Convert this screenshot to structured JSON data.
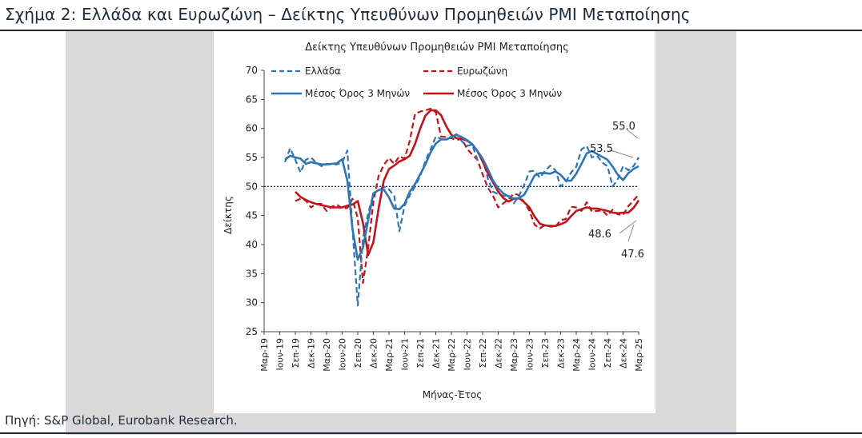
{
  "figure": {
    "caption": "Σχήμα 2: Ελλάδα και Ευρωζώνη – Δείκτης Υπευθύνων Προμηθειών PMI Μεταποίησης",
    "source": "Πηγή: S&P Global, Eurobank Research."
  },
  "colors": {
    "greece": "#2e75b6",
    "eurozone": "#c0141b",
    "reference": "#1f3a93",
    "frame": "#1d2b3a",
    "band": "#d9d9d9"
  },
  "chart_data": {
    "type": "line",
    "title": "Δείκτης Υπευθύνων Προμηθειών PMI Μεταποίησης",
    "xlabel": "Μήνας-Έτος",
    "ylabel": "Δείκτης",
    "ylim": [
      25,
      70
    ],
    "yticks": [
      25,
      30,
      35,
      40,
      45,
      50,
      55,
      60,
      65,
      70
    ],
    "reference_line": 50,
    "grid": false,
    "legend_position": "top-left",
    "x_ticklabels": [
      "Μαρ-19",
      "Ιουν-19",
      "Σεπ-19",
      "Δεκ-19",
      "Μαρ-20",
      "Ιουν-20",
      "Σεπ-20",
      "Δεκ-20",
      "Μαρ-21",
      "Ιουν-21",
      "Σεπ-21",
      "Δεκ-21",
      "Μαρ-22",
      "Ιουν-22",
      "Σεπ-22",
      "Δεκ-22",
      "Μαρ-23",
      "Ιουν-23",
      "Σεπ-23",
      "Δεκ-23",
      "Μαρ-24",
      "Ιουν-24",
      "Σεπ-24",
      "Δεκ-24",
      "Μαρ-25"
    ],
    "series": [
      {
        "name": "Ελλάδα",
        "style": "dashed",
        "color": "#2e75b6",
        "values": [
          54.2,
          56.6,
          54.6,
          52.4,
          54.6,
          55.0,
          54.1,
          53.5,
          53.9,
          53.8,
          53.8,
          54.1,
          56.2,
          42.5,
          29.5,
          41.1,
          45.4,
          48.7,
          49.4,
          50.0,
          49.5,
          48.4,
          42.3,
          46.7,
          48.5,
          50.0,
          51.8,
          54.4,
          56.4,
          58.6,
          58.2,
          58.0,
          58.6,
          59.0,
          57.8,
          57.0,
          57.2,
          54.6,
          54.8,
          51.4,
          49.1,
          48.7,
          48.4,
          48.5,
          47.1,
          48.4,
          50.3,
          52.6,
          52.7,
          51.5,
          52.7,
          53.6,
          52.8,
          50.0,
          50.8,
          52.4,
          53.4,
          56.4,
          57.0,
          55.0,
          55.3,
          54.1,
          53.5,
          50.0,
          51.3,
          53.5,
          52.8,
          53.5,
          55.0
        ]
      },
      {
        "name": "Ευρωζώνη",
        "style": "dashed",
        "color": "#c0141b",
        "values": [
          47.5,
          47.9,
          47.6,
          46.4,
          47.0,
          47.0,
          45.8,
          46.5,
          46.9,
          46.2,
          46.3,
          47.9,
          44.5,
          33.4,
          39.4,
          47.4,
          51.8,
          53.7,
          54.9,
          53.9,
          55.2,
          54.8,
          57.9,
          62.5,
          62.9,
          63.1,
          63.4,
          62.8,
          58.6,
          58.5,
          58.3,
          58.0,
          58.2,
          56.5,
          55.5,
          54.6,
          52.1,
          49.8,
          48.4,
          46.4,
          47.1,
          47.8,
          48.8,
          48.5,
          47.3,
          45.8,
          43.4,
          42.8,
          43.4,
          43.1,
          43.1,
          44.2,
          44.4,
          46.5,
          46.4,
          45.8,
          47.3,
          45.7,
          45.8,
          45.9,
          45.0,
          46.0,
          45.2,
          45.1,
          46.6,
          47.6,
          48.6
        ]
      },
      {
        "name": "Μέσος Όρος 3 Μηνών",
        "style": "solid",
        "color": "#2e75b6",
        "values": [
          54.6,
          55.3,
          55.0,
          54.8,
          53.9,
          54.2,
          54.0,
          53.8,
          53.8,
          53.9,
          54.0,
          54.7,
          51.0,
          42.6,
          37.4,
          39.5,
          44.2,
          48.8,
          49.4,
          49.5,
          48.1,
          46.2,
          46.1,
          47.0,
          49.1,
          50.4,
          52.1,
          53.8,
          55.9,
          57.4,
          58.1,
          58.1,
          58.5,
          58.9,
          58.5,
          58.0,
          57.3,
          56.1,
          54.8,
          53.0,
          51.0,
          49.7,
          48.8,
          48.3,
          47.9,
          48.0,
          48.6,
          50.2,
          51.9,
          52.3,
          52.3,
          52.2,
          52.6,
          52.0,
          51.0,
          51.0,
          52.2,
          53.9,
          55.7,
          56.1,
          55.6,
          55.1,
          54.6,
          53.4,
          52.0,
          51.1,
          52.3,
          53.0,
          53.5
        ]
      },
      {
        "name": "Μέσος Όρος 3 Μηνών",
        "style": "solid",
        "color": "#c0141b",
        "values": [
          49.1,
          48.2,
          47.7,
          47.3,
          47.0,
          46.8,
          46.6,
          46.4,
          46.4,
          46.4,
          46.7,
          46.9,
          47.5,
          43.7,
          38.2,
          40.4,
          46.2,
          51.0,
          53.0,
          53.6,
          54.3,
          54.7,
          55.3,
          57.3,
          60.0,
          62.2,
          63.1,
          63.1,
          62.3,
          60.4,
          58.9,
          58.3,
          58.2,
          57.9,
          57.3,
          56.1,
          54.3,
          52.3,
          50.7,
          49.1,
          48.0,
          47.4,
          47.9,
          48.0,
          47.3,
          46.4,
          44.8,
          43.6,
          43.3,
          43.2,
          43.2,
          43.5,
          43.9,
          44.9,
          45.8,
          46.1,
          46.4,
          46.2,
          46.2,
          46.0,
          45.8,
          45.5,
          45.4,
          45.5,
          45.5,
          46.3,
          47.6
        ]
      }
    ],
    "annotations": [
      "55.0",
      "53.5",
      "48.6",
      "47.6"
    ]
  }
}
